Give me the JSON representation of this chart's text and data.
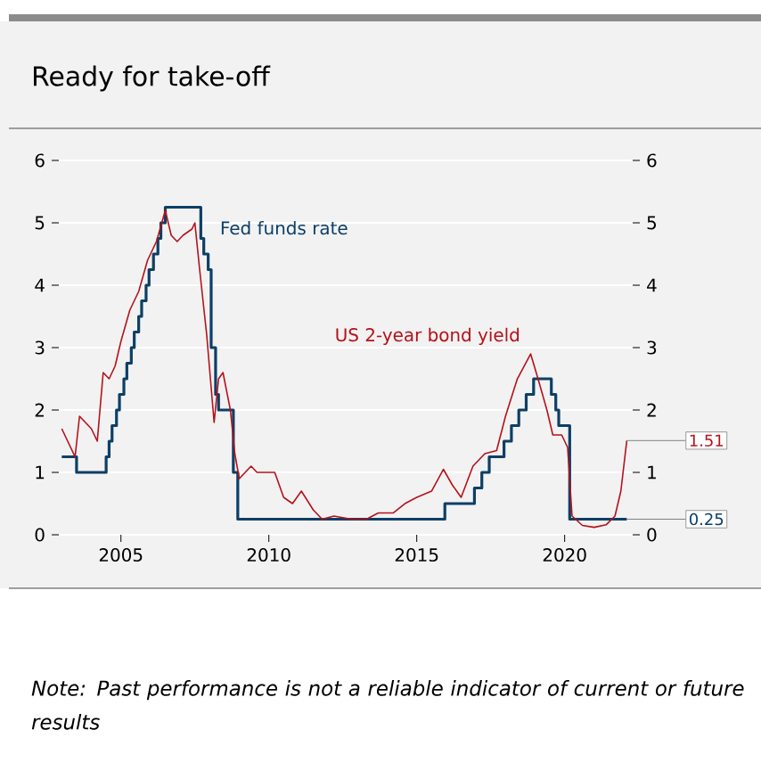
{
  "chart_data": {
    "type": "line",
    "title": "Ready for take-off",
    "xlim": [
      2002.9,
      2022.3
    ],
    "xticks": [
      2005,
      2010,
      2015,
      2020
    ],
    "ylim": [
      0,
      6
    ],
    "yticks": [
      0,
      1,
      2,
      3,
      4,
      5,
      6
    ],
    "y2lim": [
      0,
      6
    ],
    "y2ticks": [
      0,
      1,
      2,
      3,
      4,
      5,
      6
    ],
    "grid": "y",
    "series": [
      {
        "name": "Fed funds rate",
        "type": "step",
        "color": "#0d3f66",
        "x": [
          2003.0,
          2003.5,
          2004.5,
          2004.6,
          2004.7,
          2004.85,
          2004.95,
          2005.1,
          2005.2,
          2005.35,
          2005.45,
          2005.6,
          2005.7,
          2005.85,
          2005.95,
          2006.1,
          2006.25,
          2006.35,
          2006.5,
          2007.7,
          2007.8,
          2007.95,
          2008.05,
          2008.2,
          2008.3,
          2008.8,
          2008.95,
          2015.95,
          2016.95,
          2017.2,
          2017.45,
          2017.95,
          2018.2,
          2018.45,
          2018.7,
          2018.95,
          2019.55,
          2019.7,
          2019.8,
          2020.17,
          2022.1
        ],
        "values": [
          1.25,
          1.0,
          1.25,
          1.5,
          1.75,
          2.0,
          2.25,
          2.5,
          2.75,
          3.0,
          3.25,
          3.5,
          3.75,
          4.0,
          4.25,
          4.5,
          4.75,
          5.0,
          5.25,
          4.75,
          4.5,
          4.25,
          3.0,
          2.25,
          2.0,
          1.0,
          0.25,
          0.5,
          0.75,
          1.0,
          1.25,
          1.5,
          1.75,
          2.0,
          2.25,
          2.5,
          2.25,
          2.0,
          1.75,
          0.25,
          0.25
        ]
      },
      {
        "name": "US 2-year bond yield",
        "color": "#b5121b",
        "x": [
          2003.0,
          2003.2,
          2003.45,
          2003.6,
          2003.8,
          2004.0,
          2004.2,
          2004.4,
          2004.6,
          2004.8,
          2005.0,
          2005.3,
          2005.6,
          2005.9,
          2006.2,
          2006.5,
          2006.7,
          2006.9,
          2007.1,
          2007.4,
          2007.5,
          2007.65,
          2007.9,
          2008.15,
          2008.3,
          2008.45,
          2008.7,
          2008.85,
          2009.0,
          2009.4,
          2009.6,
          2009.9,
          2010.2,
          2010.5,
          2010.8,
          2011.1,
          2011.5,
          2011.8,
          2012.2,
          2012.8,
          2013.3,
          2013.7,
          2014.2,
          2014.6,
          2015.0,
          2015.5,
          2015.9,
          2016.2,
          2016.5,
          2016.9,
          2017.3,
          2017.7,
          2018.0,
          2018.4,
          2018.85,
          2019.1,
          2019.4,
          2019.6,
          2019.9,
          2020.1,
          2020.25,
          2020.6,
          2021.0,
          2021.4,
          2021.7,
          2021.9,
          2022.1
        ],
        "values": [
          1.7,
          1.5,
          1.25,
          1.9,
          1.8,
          1.7,
          1.5,
          2.6,
          2.5,
          2.7,
          3.1,
          3.6,
          3.9,
          4.4,
          4.7,
          5.2,
          4.8,
          4.7,
          4.8,
          4.9,
          5.0,
          4.3,
          3.2,
          1.8,
          2.5,
          2.6,
          2.0,
          1.3,
          0.9,
          1.1,
          1.0,
          1.0,
          1.0,
          0.6,
          0.5,
          0.7,
          0.4,
          0.25,
          0.3,
          0.25,
          0.25,
          0.35,
          0.35,
          0.5,
          0.6,
          0.7,
          1.05,
          0.8,
          0.6,
          1.1,
          1.3,
          1.35,
          1.9,
          2.5,
          2.9,
          2.5,
          2.0,
          1.6,
          1.6,
          1.4,
          0.3,
          0.15,
          0.12,
          0.16,
          0.3,
          0.7,
          1.51
        ]
      }
    ],
    "annotations": [
      {
        "text": "1.51",
        "x": 2022.1,
        "y": 1.51
      },
      {
        "text": "0.25",
        "x": 2022.1,
        "y": 0.25
      },
      "Note: Past performance is not a reliable indicator of current or future results"
    ]
  }
}
